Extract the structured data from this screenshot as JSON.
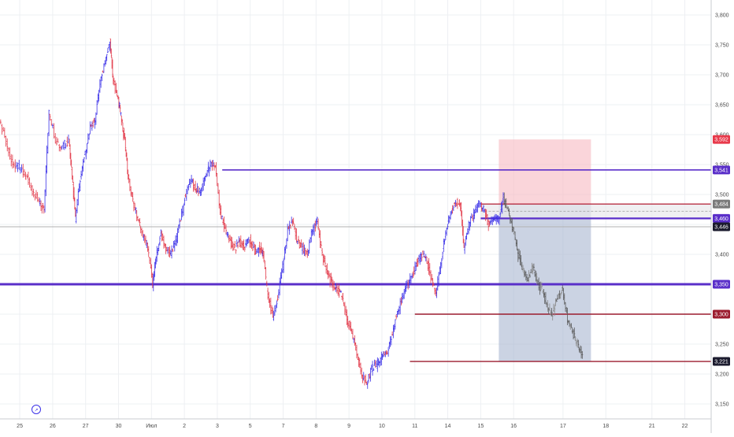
{
  "chart_data": {
    "type": "line",
    "title": "",
    "xlabel": "",
    "ylabel": "",
    "ylim": [
      3125,
      3825
    ],
    "price_ticks": [
      3800,
      3750,
      3700,
      3650,
      3600,
      3550,
      3500,
      3450,
      3400,
      3350,
      3300,
      3250,
      3200,
      3150
    ],
    "price_tick_labels": [
      "3,800",
      "3,750",
      "3,700",
      "3,650",
      "3,600",
      "3,550",
      "3,500",
      "3,450",
      "3,400",
      "3,350",
      "3,300",
      "3,250",
      "3,200",
      "3,150"
    ],
    "date_ticks": [
      {
        "label": "25",
        "x": 25
      },
      {
        "label": "26",
        "x": 26
      },
      {
        "label": "27",
        "x": 27
      },
      {
        "label": "30",
        "x": 28
      },
      {
        "label": "Июл",
        "x": 29
      },
      {
        "label": "2",
        "x": 30
      },
      {
        "label": "3",
        "x": 31
      },
      {
        "label": "5",
        "x": 32
      },
      {
        "label": "7",
        "x": 33
      },
      {
        "label": "8",
        "x": 34
      },
      {
        "label": "9",
        "x": 35
      },
      {
        "label": "10",
        "x": 36
      },
      {
        "label": "11",
        "x": 37
      },
      {
        "label": "14",
        "x": 38
      },
      {
        "label": "15",
        "x": 39
      },
      {
        "label": "16",
        "x": 40
      },
      {
        "label": "17",
        "x": 41.5
      },
      {
        "label": "18",
        "x": 42.8
      },
      {
        "label": "21",
        "x": 44.2
      },
      {
        "label": "22",
        "x": 45.2
      }
    ],
    "xlim": [
      24.4,
      46.0
    ],
    "series": [
      {
        "points": [
          [
            24.4,
            3625
          ],
          [
            24.6,
            3585
          ],
          [
            24.8,
            3550
          ],
          [
            25.0,
            3545
          ],
          [
            25.2,
            3530
          ],
          [
            25.4,
            3505
          ],
          [
            25.6,
            3490
          ],
          [
            25.75,
            3475
          ],
          [
            25.9,
            3640
          ],
          [
            26.1,
            3590
          ],
          [
            26.3,
            3580
          ],
          [
            26.5,
            3590
          ],
          [
            26.6,
            3530
          ],
          [
            26.7,
            3460
          ],
          [
            26.85,
            3525
          ],
          [
            27.0,
            3570
          ],
          [
            27.15,
            3610
          ],
          [
            27.3,
            3625
          ],
          [
            27.45,
            3690
          ],
          [
            27.6,
            3720
          ],
          [
            27.75,
            3755
          ],
          [
            27.85,
            3690
          ],
          [
            28.0,
            3660
          ],
          [
            28.1,
            3625
          ],
          [
            28.2,
            3590
          ],
          [
            28.3,
            3530
          ],
          [
            28.45,
            3490
          ],
          [
            28.6,
            3460
          ],
          [
            28.75,
            3430
          ],
          [
            28.9,
            3410
          ],
          [
            29.05,
            3350
          ],
          [
            29.15,
            3395
          ],
          [
            29.3,
            3435
          ],
          [
            29.45,
            3410
          ],
          [
            29.6,
            3400
          ],
          [
            29.75,
            3420
          ],
          [
            29.9,
            3460
          ],
          [
            30.05,
            3500
          ],
          [
            30.2,
            3525
          ],
          [
            30.35,
            3510
          ],
          [
            30.5,
            3505
          ],
          [
            30.65,
            3530
          ],
          [
            30.8,
            3550
          ],
          [
            30.95,
            3545
          ],
          [
            31.1,
            3470
          ],
          [
            31.25,
            3440
          ],
          [
            31.4,
            3420
          ],
          [
            31.55,
            3410
          ],
          [
            31.7,
            3420
          ],
          [
            31.85,
            3415
          ],
          [
            32.0,
            3425
          ],
          [
            32.15,
            3405
          ],
          [
            32.3,
            3410
          ],
          [
            32.4,
            3400
          ],
          [
            32.55,
            3330
          ],
          [
            32.7,
            3295
          ],
          [
            32.85,
            3330
          ],
          [
            33.0,
            3380
          ],
          [
            33.15,
            3440
          ],
          [
            33.3,
            3455
          ],
          [
            33.45,
            3420
          ],
          [
            33.6,
            3410
          ],
          [
            33.75,
            3400
          ],
          [
            33.9,
            3440
          ],
          [
            34.05,
            3455
          ],
          [
            34.2,
            3400
          ],
          [
            34.35,
            3370
          ],
          [
            34.5,
            3350
          ],
          [
            34.65,
            3340
          ],
          [
            34.8,
            3330
          ],
          [
            34.95,
            3290
          ],
          [
            35.1,
            3270
          ],
          [
            35.25,
            3230
          ],
          [
            35.4,
            3200
          ],
          [
            35.55,
            3185
          ],
          [
            35.7,
            3210
          ],
          [
            35.85,
            3215
          ],
          [
            36.0,
            3230
          ],
          [
            36.15,
            3235
          ],
          [
            36.3,
            3260
          ],
          [
            36.45,
            3300
          ],
          [
            36.6,
            3320
          ],
          [
            36.75,
            3350
          ],
          [
            36.9,
            3360
          ],
          [
            37.05,
            3380
          ],
          [
            37.2,
            3400
          ],
          [
            37.35,
            3395
          ],
          [
            37.5,
            3360
          ],
          [
            37.65,
            3340
          ],
          [
            37.8,
            3380
          ],
          [
            37.95,
            3440
          ],
          [
            38.1,
            3470
          ],
          [
            38.25,
            3490
          ],
          [
            38.4,
            3480
          ],
          [
            38.5,
            3410
          ],
          [
            38.65,
            3450
          ],
          [
            38.8,
            3465
          ],
          [
            38.95,
            3485
          ],
          [
            39.1,
            3475
          ],
          [
            39.25,
            3450
          ],
          [
            39.4,
            3455
          ],
          [
            39.55,
            3460
          ],
          [
            39.7,
            3495
          ],
          [
            39.85,
            3470
          ],
          [
            40.0,
            3440
          ],
          [
            40.15,
            3400
          ],
          [
            40.3,
            3370
          ],
          [
            40.45,
            3360
          ],
          [
            40.6,
            3380
          ],
          [
            40.75,
            3350
          ],
          [
            40.9,
            3340
          ],
          [
            41.05,
            3310
          ],
          [
            41.2,
            3300
          ],
          [
            41.35,
            3330
          ],
          [
            41.5,
            3340
          ],
          [
            41.65,
            3290
          ],
          [
            41.8,
            3270
          ],
          [
            41.95,
            3250
          ],
          [
            42.1,
            3230
          ]
        ]
      }
    ],
    "horizontal_lines": [
      {
        "price": 3541,
        "color": "#5a2fc9",
        "from_x": 31.15,
        "width": 1.6
      },
      {
        "price": 3484,
        "color": "#b11c32",
        "from_x": 39.0,
        "width": 1.2
      },
      {
        "price": 3460,
        "color": "#5a2fc9",
        "from_x": 39.0,
        "width": 2.2
      },
      {
        "price": 3446,
        "color": "#b0b0b0",
        "from_x": 24.4,
        "width": 1
      },
      {
        "price": 3350,
        "color": "#5a2fc9",
        "from_x": 24.4,
        "width": 3
      },
      {
        "price": 3300,
        "color": "#9b1c2e",
        "from_x": 37.0,
        "width": 1.4
      },
      {
        "price": 3221,
        "color": "#9b1c2e",
        "from_x": 36.85,
        "width": 1.4
      }
    ],
    "price_badges": [
      {
        "price": 3592,
        "label": "3,592",
        "color": "#e8394a"
      },
      {
        "price": 3541,
        "label": "3,541",
        "color": "#5a2fc9"
      },
      {
        "price": 3484,
        "label": "3,484",
        "color": "#7a7a7a"
      },
      {
        "price": 3460,
        "label": "3,460",
        "color": "#5a2fc9"
      },
      {
        "price": 3446,
        "label": "3,446",
        "color": "#1b1b2e"
      },
      {
        "price": 3350,
        "label": "3,350",
        "color": "#5a2fc9"
      },
      {
        "price": 3300,
        "label": "3,300",
        "color": "#9b1c2e"
      },
      {
        "price": 3221,
        "label": "3,221",
        "color": "#1b1b2e"
      }
    ],
    "position_tool": {
      "x_start": 39.55,
      "x_end": 42.35,
      "entry": 3484,
      "stop": 3592,
      "target": 3221,
      "stop_color": "#f7b9c2",
      "target_color": "#a9b6d1"
    },
    "gray_zone": {
      "from_x": 39.0,
      "top": 3484,
      "bottom": 3460
    },
    "colors": {
      "up": "#3b31e8",
      "down": "#e23a4a",
      "grid": "#eef0f3",
      "axis": "#c9ccd2"
    }
  },
  "controls": {
    "goto_label": "↗"
  }
}
